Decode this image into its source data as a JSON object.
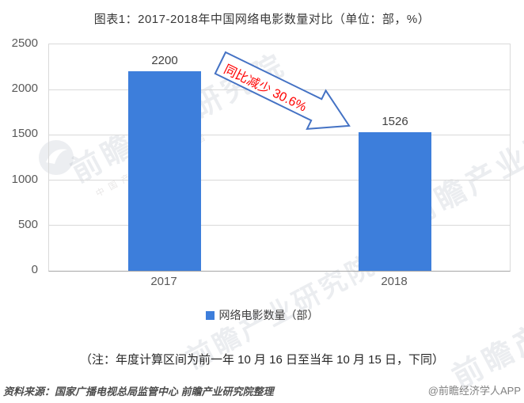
{
  "title": "图表1：2017-2018年中国网络电影数量对比（单位：部，%）",
  "chart_data": {
    "type": "bar",
    "categories": [
      "2017",
      "2018"
    ],
    "series": [
      {
        "name": "网络电影数量（部）",
        "values": [
          2200,
          1526
        ]
      }
    ],
    "data_labels": [
      "2200",
      "1526"
    ],
    "ylim": [
      0,
      2500
    ],
    "yticks": [
      0,
      500,
      1000,
      1500,
      2000,
      2500
    ],
    "grid": true,
    "legend_position": "bottom",
    "bar_color": "#3d7edb",
    "annotation": {
      "text": "同比减少 30.6%",
      "text_color": "#ff0000",
      "arrow_color": "#4472c4",
      "rotation_deg": 26
    }
  },
  "legend": {
    "label": "网络电影数量（部）",
    "swatch_color": "#3d7edb"
  },
  "note": "（注：年度计算区间为前一年 10 月 16 日至当年 10 月 15 日，下同）",
  "footer": {
    "source": "资料来源：国家广播电视总局监管中心  前瞻产业研究院整理",
    "credit": "@前瞻经济学人APP"
  },
  "watermark": {
    "text": "前瞻产业研究院",
    "subtext": "中国产业咨询领导者"
  }
}
